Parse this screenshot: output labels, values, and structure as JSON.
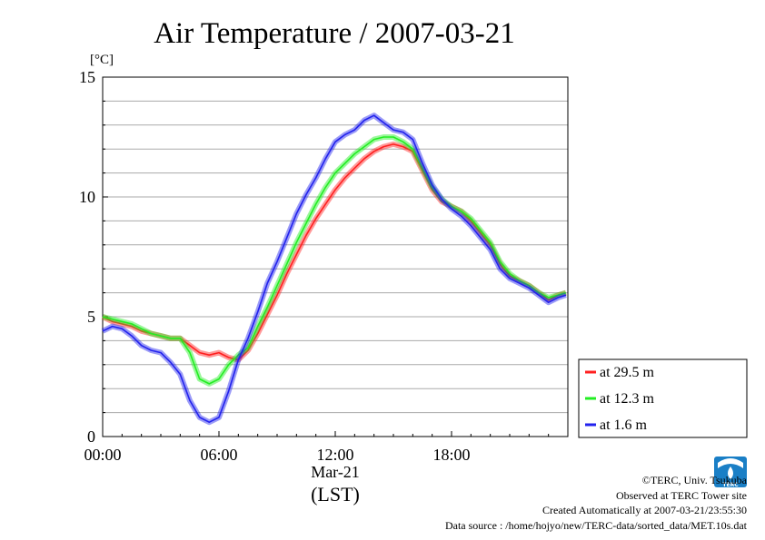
{
  "chart_data": {
    "type": "line",
    "title": "Air Temperature / 2007-03-21",
    "ylabel": "[°C]",
    "xlabel": "(LST)",
    "x_date_label": "Mar-21",
    "x_unit": "hour",
    "xlim": [
      0,
      24
    ],
    "ylim": [
      0,
      15
    ],
    "x_ticks": [
      0,
      6,
      12,
      18
    ],
    "x_tick_labels": [
      "00:00",
      "06:00",
      "12:00",
      "18:00"
    ],
    "y_ticks": [
      0,
      5,
      10,
      15
    ],
    "y_tick_labels": [
      "0",
      "5",
      "10",
      "15"
    ],
    "grid": true,
    "legend_position": "right-bottom outside",
    "x": [
      0,
      0.5,
      1,
      1.5,
      2,
      2.5,
      3,
      3.5,
      4,
      4.5,
      5,
      5.5,
      6,
      6.5,
      7,
      7.5,
      8,
      8.5,
      9,
      9.5,
      10,
      10.5,
      11,
      11.5,
      12,
      12.5,
      13,
      13.5,
      14,
      14.5,
      15,
      15.5,
      16,
      16.5,
      17,
      17.5,
      18,
      18.5,
      19,
      19.5,
      20,
      20.5,
      21,
      21.5,
      22,
      22.5,
      23,
      23.5,
      23.9
    ],
    "series": [
      {
        "name": "at 29.5 m",
        "color": "#ff2020",
        "values": [
          5.0,
          4.8,
          4.7,
          4.6,
          4.4,
          4.3,
          4.2,
          4.1,
          4.1,
          3.8,
          3.5,
          3.4,
          3.5,
          3.3,
          3.2,
          3.6,
          4.3,
          5.1,
          5.9,
          6.8,
          7.6,
          8.4,
          9.1,
          9.7,
          10.3,
          10.8,
          11.2,
          11.6,
          11.9,
          12.1,
          12.2,
          12.1,
          11.9,
          11.1,
          10.3,
          9.8,
          9.6,
          9.4,
          9.0,
          8.5,
          8.0,
          7.2,
          6.7,
          6.5,
          6.3,
          6.0,
          5.7,
          5.9,
          6.0
        ]
      },
      {
        "name": "at 12.3 m",
        "color": "#22ee22",
        "values": [
          5.0,
          4.9,
          4.8,
          4.7,
          4.5,
          4.3,
          4.2,
          4.1,
          4.1,
          3.5,
          2.4,
          2.2,
          2.4,
          3.0,
          3.4,
          3.7,
          4.6,
          5.4,
          6.3,
          7.2,
          8.1,
          8.9,
          9.7,
          10.4,
          11.0,
          11.4,
          11.8,
          12.1,
          12.4,
          12.5,
          12.5,
          12.3,
          12.0,
          11.2,
          10.4,
          9.9,
          9.6,
          9.4,
          9.1,
          8.6,
          8.1,
          7.3,
          6.8,
          6.5,
          6.3,
          6.0,
          5.8,
          5.9,
          6.0
        ]
      },
      {
        "name": "at 1.6 m",
        "color": "#2222ee",
        "values": [
          4.4,
          4.6,
          4.5,
          4.2,
          3.8,
          3.6,
          3.5,
          3.1,
          2.6,
          1.5,
          0.8,
          0.6,
          0.8,
          1.9,
          3.2,
          4.1,
          5.2,
          6.4,
          7.3,
          8.3,
          9.3,
          10.1,
          10.8,
          11.6,
          12.3,
          12.6,
          12.8,
          13.2,
          13.4,
          13.1,
          12.8,
          12.7,
          12.4,
          11.4,
          10.5,
          9.9,
          9.5,
          9.2,
          8.8,
          8.3,
          7.8,
          7.0,
          6.6,
          6.4,
          6.2,
          5.9,
          5.6,
          5.8,
          5.9
        ]
      }
    ]
  },
  "footer": {
    "copyright": "©TERC, Univ. Tsukuba",
    "observed": "Observed at TERC Tower site",
    "created": "Created Automatically at 2007-03-21/23:55:30",
    "source": "Data source : /home/hojyo/new/TERC-data/sorted_data/MET.10s.dat",
    "logo_text": "TERC",
    "logo_color": "#1a7fc6"
  }
}
